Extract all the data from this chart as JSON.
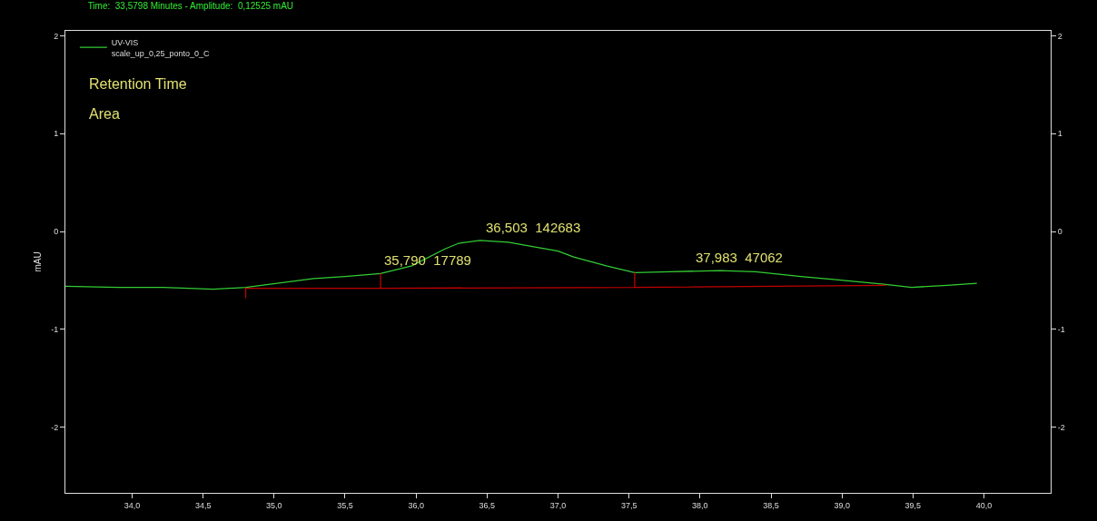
{
  "chart_data": {
    "type": "line",
    "title": "Time:  33,5798 Minutes - Amplitude:  0,12525 mAU",
    "ylabel": "mAU",
    "series": [
      {
        "name": "UV-VIS\nscale_up_0,25_ponto_0_C",
        "color": "#33cc33",
        "x": [
          33.53,
          33.9,
          34.22,
          34.57,
          34.8,
          35.28,
          35.5,
          35.75,
          35.97,
          36.2,
          36.3,
          36.45,
          36.65,
          37.0,
          37.11,
          37.34,
          37.54,
          37.79,
          38.14,
          38.39,
          38.71,
          38.94,
          39.31,
          39.49,
          39.74,
          39.95
        ],
        "values": [
          -0.56,
          -0.57,
          -0.57,
          -0.59,
          -0.57,
          -0.48,
          -0.46,
          -0.43,
          -0.35,
          -0.18,
          -0.12,
          -0.09,
          -0.11,
          -0.2,
          -0.26,
          -0.35,
          -0.42,
          -0.41,
          -0.4,
          -0.41,
          -0.46,
          -0.49,
          -0.54,
          -0.57,
          -0.55,
          -0.53
        ]
      },
      {
        "color": "#c00000",
        "x": [
          34.8,
          34.8,
          35.75,
          35.75,
          35.75,
          37.54,
          37.54,
          37.54,
          39.31
        ],
        "values": [
          -0.68,
          -0.58,
          -0.58,
          -0.43,
          -0.58,
          -0.57,
          -0.42,
          -0.57,
          -0.55
        ]
      }
    ],
    "annotations": [
      "Retention Time",
      "Area",
      {
        "text": "35,790  17789",
        "x": 35.79,
        "y": -0.43
      },
      {
        "text": "36,503  142683",
        "x": 36.503,
        "y": -0.09
      },
      {
        "text": "37,983  47062",
        "x": 37.983,
        "y": -0.4
      }
    ],
    "xlim": [
      33.53,
      40.47
    ],
    "xticks": [
      {
        "value": 34,
        "label": "34,0"
      },
      {
        "value": 34.5,
        "label": "34,5"
      },
      {
        "value": 35,
        "label": "35,0"
      },
      {
        "value": 35.5,
        "label": "35,5"
      },
      {
        "value": 36,
        "label": "36,0"
      },
      {
        "value": 36.5,
        "label": "36,5"
      },
      {
        "value": 37,
        "label": "37,0"
      },
      {
        "value": 37.5,
        "label": "37,5"
      },
      {
        "value": 38,
        "label": "38,0"
      },
      {
        "value": 38.5,
        "label": "38,5"
      },
      {
        "value": 39,
        "label": "39,0"
      },
      {
        "value": 39.5,
        "label": "39,5"
      },
      {
        "value": 40,
        "label": "40,0"
      }
    ],
    "ylim": [
      -2.67,
      2.05
    ],
    "yticks": [
      -2,
      -1,
      0,
      1,
      2
    ],
    "y2lim": [
      -2.67,
      2.05
    ],
    "y2ticks": [
      -2,
      -1,
      0,
      1,
      2
    ],
    "grid": false,
    "legend": "top left",
    "line_style": "solid",
    "marker": "none"
  }
}
